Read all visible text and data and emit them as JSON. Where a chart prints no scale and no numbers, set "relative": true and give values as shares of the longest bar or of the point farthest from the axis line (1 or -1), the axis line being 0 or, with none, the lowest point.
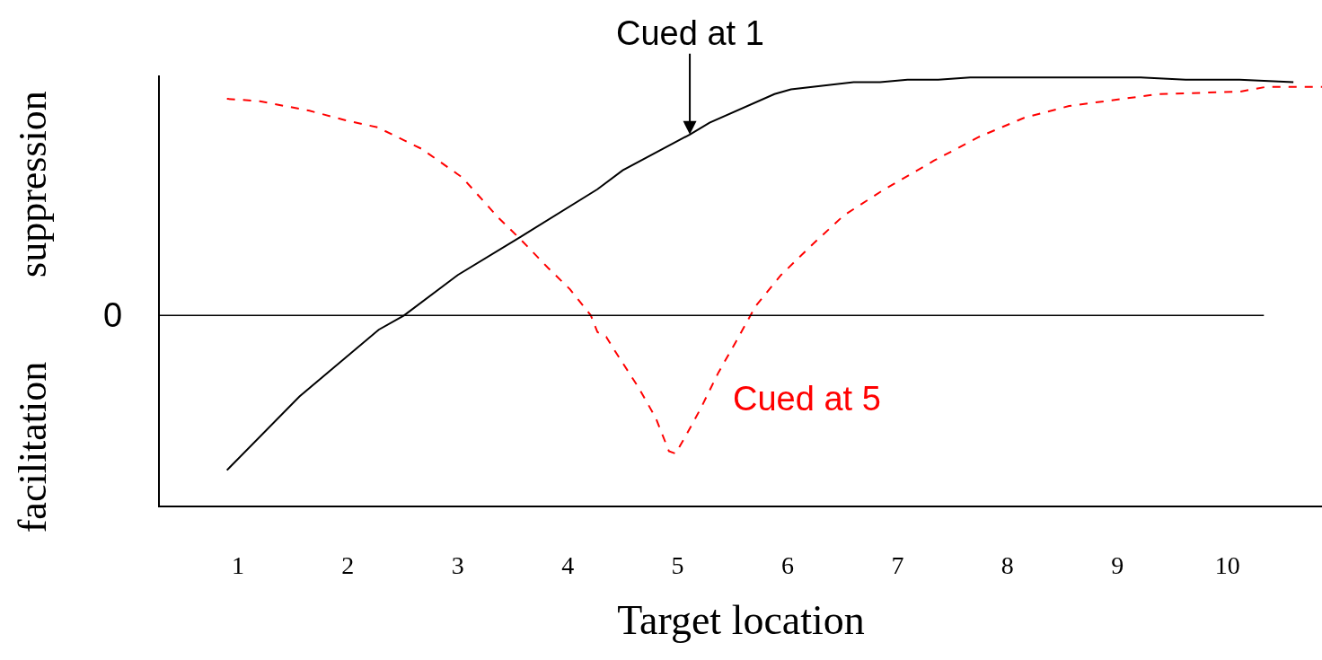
{
  "chart_data": {
    "type": "line",
    "relative": true,
    "xlabel": "Target location",
    "xlim": [
      0.29,
      10.86
    ],
    "xticks": [
      1,
      2,
      3,
      4,
      5,
      6,
      7,
      8,
      9,
      10
    ],
    "grid": false,
    "marker": "none",
    "series": [
      {
        "color": "#000000",
        "line_style": "solid",
        "x": [
          0.9,
          1.56,
          2.28,
          2.51,
          3.0,
          3.57,
          4.27,
          4.5,
          5.11,
          5.29,
          5.88,
          6.03,
          6.6,
          6.84,
          7.09,
          7.37,
          7.66,
          9.21,
          9.62,
          10.11,
          10.6
        ],
        "values": [
          -0.65,
          -0.34,
          -0.06,
          0,
          0.17,
          0.33,
          0.53,
          0.61,
          0.76,
          0.81,
          0.93,
          0.95,
          0.98,
          0.98,
          0.99,
          0.99,
          1.0,
          1.0,
          0.99,
          0.99,
          0.98
        ]
      },
      {
        "color": "#ff0000",
        "line_style": "dashed",
        "x": [
          0.9,
          1.2,
          1.65,
          1.98,
          2.27,
          2.67,
          3.04,
          3.37,
          3.57,
          3.82,
          4.02,
          4.21,
          4.27,
          4.35,
          4.43,
          4.64,
          4.8,
          4.92,
          4.98,
          5.08,
          5.21,
          5.37,
          5.53,
          5.71,
          5.94,
          6.23,
          6.51,
          6.88,
          7.33,
          7.74,
          8.15,
          8.56,
          9.05,
          9.37,
          10.11,
          10.35,
          10.86
        ],
        "values": [
          0.91,
          0.9,
          0.86,
          0.82,
          0.79,
          0.7,
          0.58,
          0.41,
          0.32,
          0.2,
          0.11,
          0,
          -0.07,
          -0.09,
          -0.15,
          -0.3,
          -0.43,
          -0.57,
          -0.58,
          -0.5,
          -0.39,
          -0.24,
          -0.11,
          0.04,
          0.17,
          0.3,
          0.42,
          0.53,
          0.65,
          0.75,
          0.83,
          0.88,
          0.91,
          0.93,
          0.94,
          0.96,
          0.96
        ]
      }
    ],
    "ref_lines": [
      {
        "axis": "y",
        "value": 0,
        "label": "0",
        "color": "#000000"
      }
    ],
    "annotations": [
      "suppression",
      "facilitation",
      {
        "text": "Cued at 1",
        "x": 5.11,
        "y": 0.76
      },
      {
        "text": "Cued at 5",
        "x": 5.37,
        "y": -0.24
      }
    ]
  }
}
